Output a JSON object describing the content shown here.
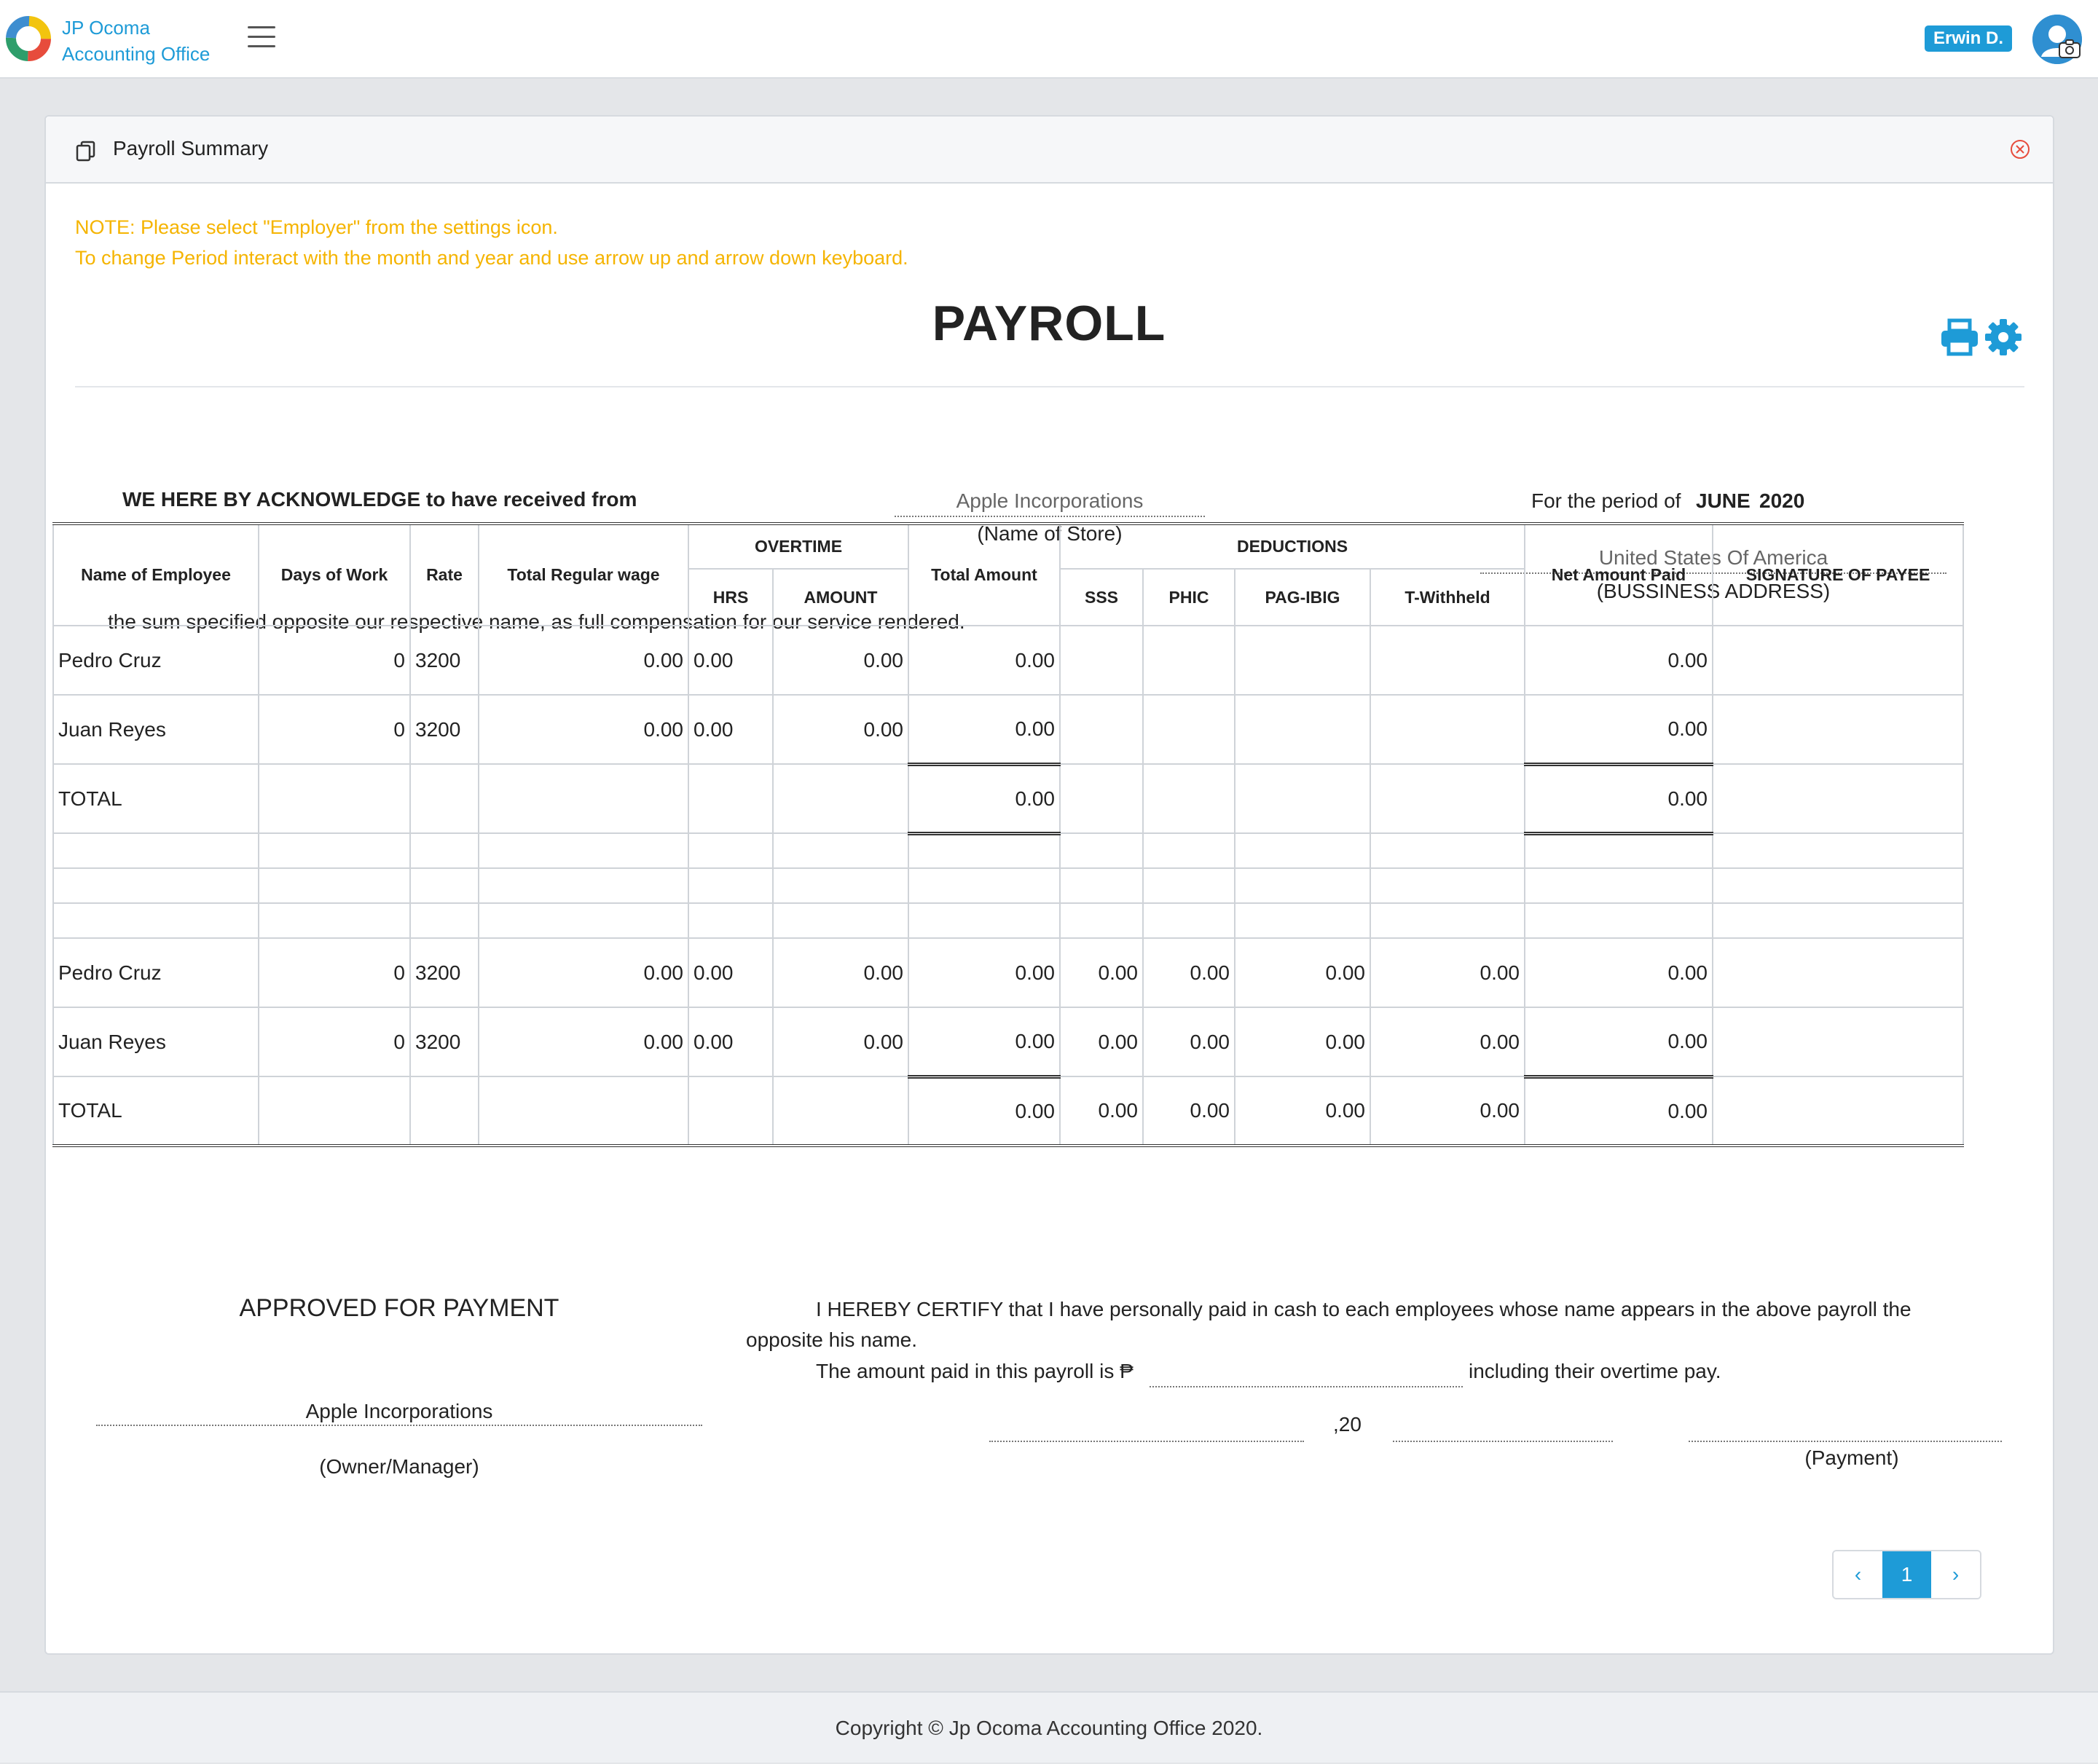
{
  "app": {
    "brand_line1": "JP Ocoma",
    "brand_line2": "Accounting Office",
    "user_name": "Erwin D.",
    "accent_color": "#1e9bd7"
  },
  "card": {
    "title": "Payroll Summary",
    "note_line1": "NOTE: Please select \"Employer\" from the settings icon.",
    "note_line2": "To change Period interact with the month and year and use arrow up and arrow down keyboard.",
    "note_color": "#f5b400"
  },
  "payroll": {
    "title": "PAYROLL",
    "acknowledge": "WE HERE BY ACKNOWLEDGE to have received from",
    "store_name": "Apple Incorporations",
    "store_caption": "(Name of Store)",
    "period_label": "For the period of",
    "period_month": "JUNE",
    "period_year": "2020",
    "address": "United States Of America",
    "address_caption": "(BUSSINESS ADDRESS)",
    "sum_text": "the sum specified opposite our respective name, as full compensation for our service rendered."
  },
  "table": {
    "headers": {
      "name": "Name of Employee",
      "days": "Days of Work",
      "rate": "Rate",
      "regular": "Total Regular wage",
      "overtime": "OVERTIME",
      "hrs": "HRS",
      "amount": "AMOUNT",
      "total_amount": "Total Amount",
      "deductions": "DEDUCTIONS",
      "sss": "SSS",
      "phic": "PHIC",
      "pagibig": "PAG-IBIG",
      "twithheld": "T-Withheld",
      "net": "Net Amount Paid",
      "signature": "SIGNATURE OF PAYEE"
    },
    "section1": {
      "rows": [
        {
          "name": "Pedro Cruz",
          "days": "0",
          "rate": "3200",
          "regular": "0.00",
          "hrs": "0.00",
          "amount": "0.00",
          "total": "0.00",
          "net": "0.00"
        },
        {
          "name": "Juan Reyes",
          "days": "0",
          "rate": "3200",
          "regular": "0.00",
          "hrs": "0.00",
          "amount": "0.00",
          "total": "0.00",
          "net": "0.00"
        }
      ],
      "total_label": "TOTAL",
      "total_amount": "0.00",
      "total_net": "0.00"
    },
    "section2": {
      "rows": [
        {
          "name": "Pedro Cruz",
          "days": "0",
          "rate": "3200",
          "regular": "0.00",
          "hrs": "0.00",
          "amount": "0.00",
          "total": "0.00",
          "sss": "0.00",
          "phic": "0.00",
          "pagibig": "0.00",
          "twithheld": "0.00",
          "net": "0.00"
        },
        {
          "name": "Juan Reyes",
          "days": "0",
          "rate": "3200",
          "regular": "0.00",
          "hrs": "0.00",
          "amount": "0.00",
          "total": "0.00",
          "sss": "0.00",
          "phic": "0.00",
          "pagibig": "0.00",
          "twithheld": "0.00",
          "net": "0.00"
        }
      ],
      "total_label": "TOTAL",
      "total_amount": "0.00",
      "total_sss": "0.00",
      "total_phic": "0.00",
      "total_pagibig": "0.00",
      "total_twithheld": "0.00",
      "total_net": "0.00"
    }
  },
  "approval": {
    "approved": "APPROVED FOR PAYMENT",
    "certify_1": "I HEREBY CERTIFY that I have personally paid in cash to each employees whose name appears in the above payroll the",
    "certify_2": "opposite his name.",
    "amount_prefix": "The amount paid in this payroll is ₱",
    "amount_suffix": "including their overtime pay.",
    "owner_name": "Apple Incorporations",
    "owner_caption": "(Owner/Manager)",
    "year_prefix": ",20",
    "payment_caption": "(Payment)"
  },
  "pagination": {
    "current": "1",
    "prev": "‹",
    "next": "›"
  },
  "footer": {
    "copyright": "Copyright © Jp Ocoma Accounting Office 2020."
  }
}
